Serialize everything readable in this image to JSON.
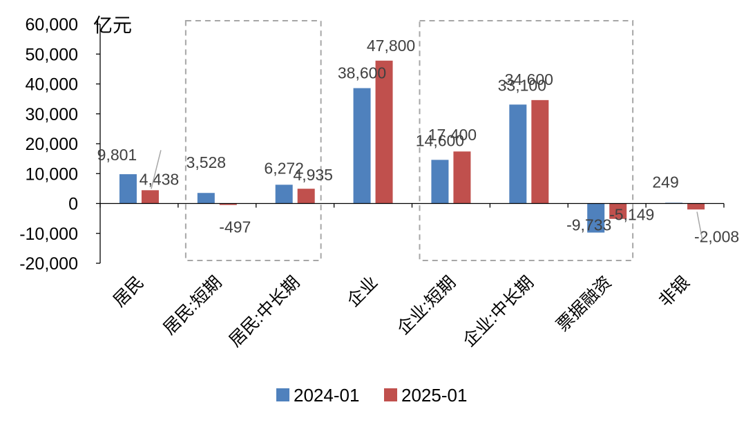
{
  "chart_data": {
    "type": "bar",
    "unit_label": "亿元",
    "categories": [
      "居民",
      "居民:短期",
      "居民:中长期",
      "企业",
      "企业:短期",
      "企业:中长期",
      "票据融资",
      "非银"
    ],
    "series": [
      {
        "name": "2024-01",
        "color": "#4f81bd",
        "values": [
          9801,
          3528,
          6272,
          38600,
          14600,
          33100,
          -9733,
          249
        ],
        "labels": [
          "9,801",
          "3,528",
          "6,272",
          "38,600",
          "14,600",
          "33,100",
          "-9,733",
          "249"
        ]
      },
      {
        "name": "2025-01",
        "color": "#c0504d",
        "values": [
          4438,
          -497,
          4935,
          47800,
          17400,
          34600,
          -5149,
          -2008
        ],
        "labels": [
          "4,438",
          "-497",
          "4,935",
          "47,800",
          "17,400",
          "34,600",
          "-5,149",
          "-2,008"
        ]
      }
    ],
    "ylim": [
      -20000,
      60000
    ],
    "yticks": [
      60000,
      50000,
      40000,
      30000,
      20000,
      10000,
      0,
      -10000,
      -20000
    ],
    "ytick_labels": [
      "60,000",
      "50,000",
      "40,000",
      "30,000",
      "20,000",
      "10,000",
      "0",
      "-10,000",
      "-20,000"
    ],
    "legend_position": "bottom",
    "grid": false,
    "highlight_groups": [
      [
        "居民:短期",
        "居民:中长期"
      ],
      [
        "企业:短期",
        "企业:中长期",
        "票据融资"
      ]
    ]
  }
}
